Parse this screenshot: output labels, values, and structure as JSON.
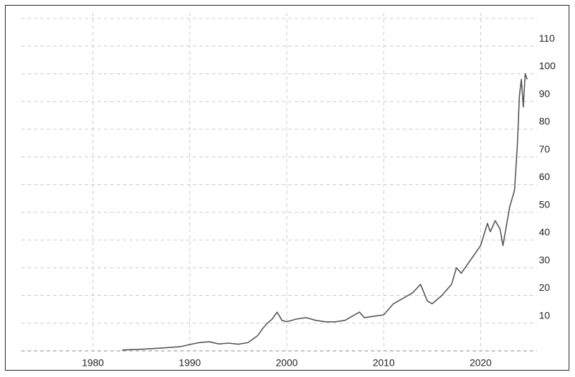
{
  "chart_data": {
    "type": "line",
    "x": [
      1983,
      1985,
      1987,
      1989,
      1990,
      1991,
      1992,
      1993,
      1994,
      1995,
      1996,
      1997,
      1997.5,
      1998,
      1998.5,
      1999,
      1999.5,
      2000,
      2001,
      2002,
      2003,
      2004,
      2005,
      2006,
      2007,
      2007.5,
      2008,
      2009,
      2010,
      2011,
      2012,
      2013,
      2013.8,
      2014.5,
      2015,
      2016,
      2017,
      2017.5,
      2018,
      2019,
      2020,
      2020.7,
      2021,
      2021.5,
      2022,
      2022.3,
      2022.7,
      2023,
      2023.5,
      2023.8,
      2024,
      2024.2,
      2024.4,
      2024.6,
      2024.8
    ],
    "series": [
      {
        "color": "#555555",
        "values": [
          0.3,
          0.6,
          1.0,
          1.5,
          2.3,
          3.0,
          3.3,
          2.5,
          2.8,
          2.4,
          3.0,
          5.5,
          8,
          10,
          11.5,
          14,
          11,
          10.5,
          11.5,
          12,
          11,
          10.5,
          10.5,
          11,
          13,
          14,
          12,
          12.5,
          13,
          17,
          19,
          21,
          24,
          18,
          17,
          20,
          24,
          30,
          28,
          33,
          38,
          46,
          43,
          47,
          44,
          38,
          46,
          52,
          58,
          75,
          92,
          98,
          88,
          100,
          98
        ]
      }
    ],
    "xlim": [
      1972.6,
      2025.8
    ],
    "xticks": [
      1980,
      1990,
      2000,
      2010,
      2020
    ],
    "ylim": [
      0,
      120
    ],
    "yticks": [
      10,
      20,
      30,
      40,
      50,
      60,
      70,
      80,
      90,
      100,
      110
    ],
    "grid": true
  }
}
